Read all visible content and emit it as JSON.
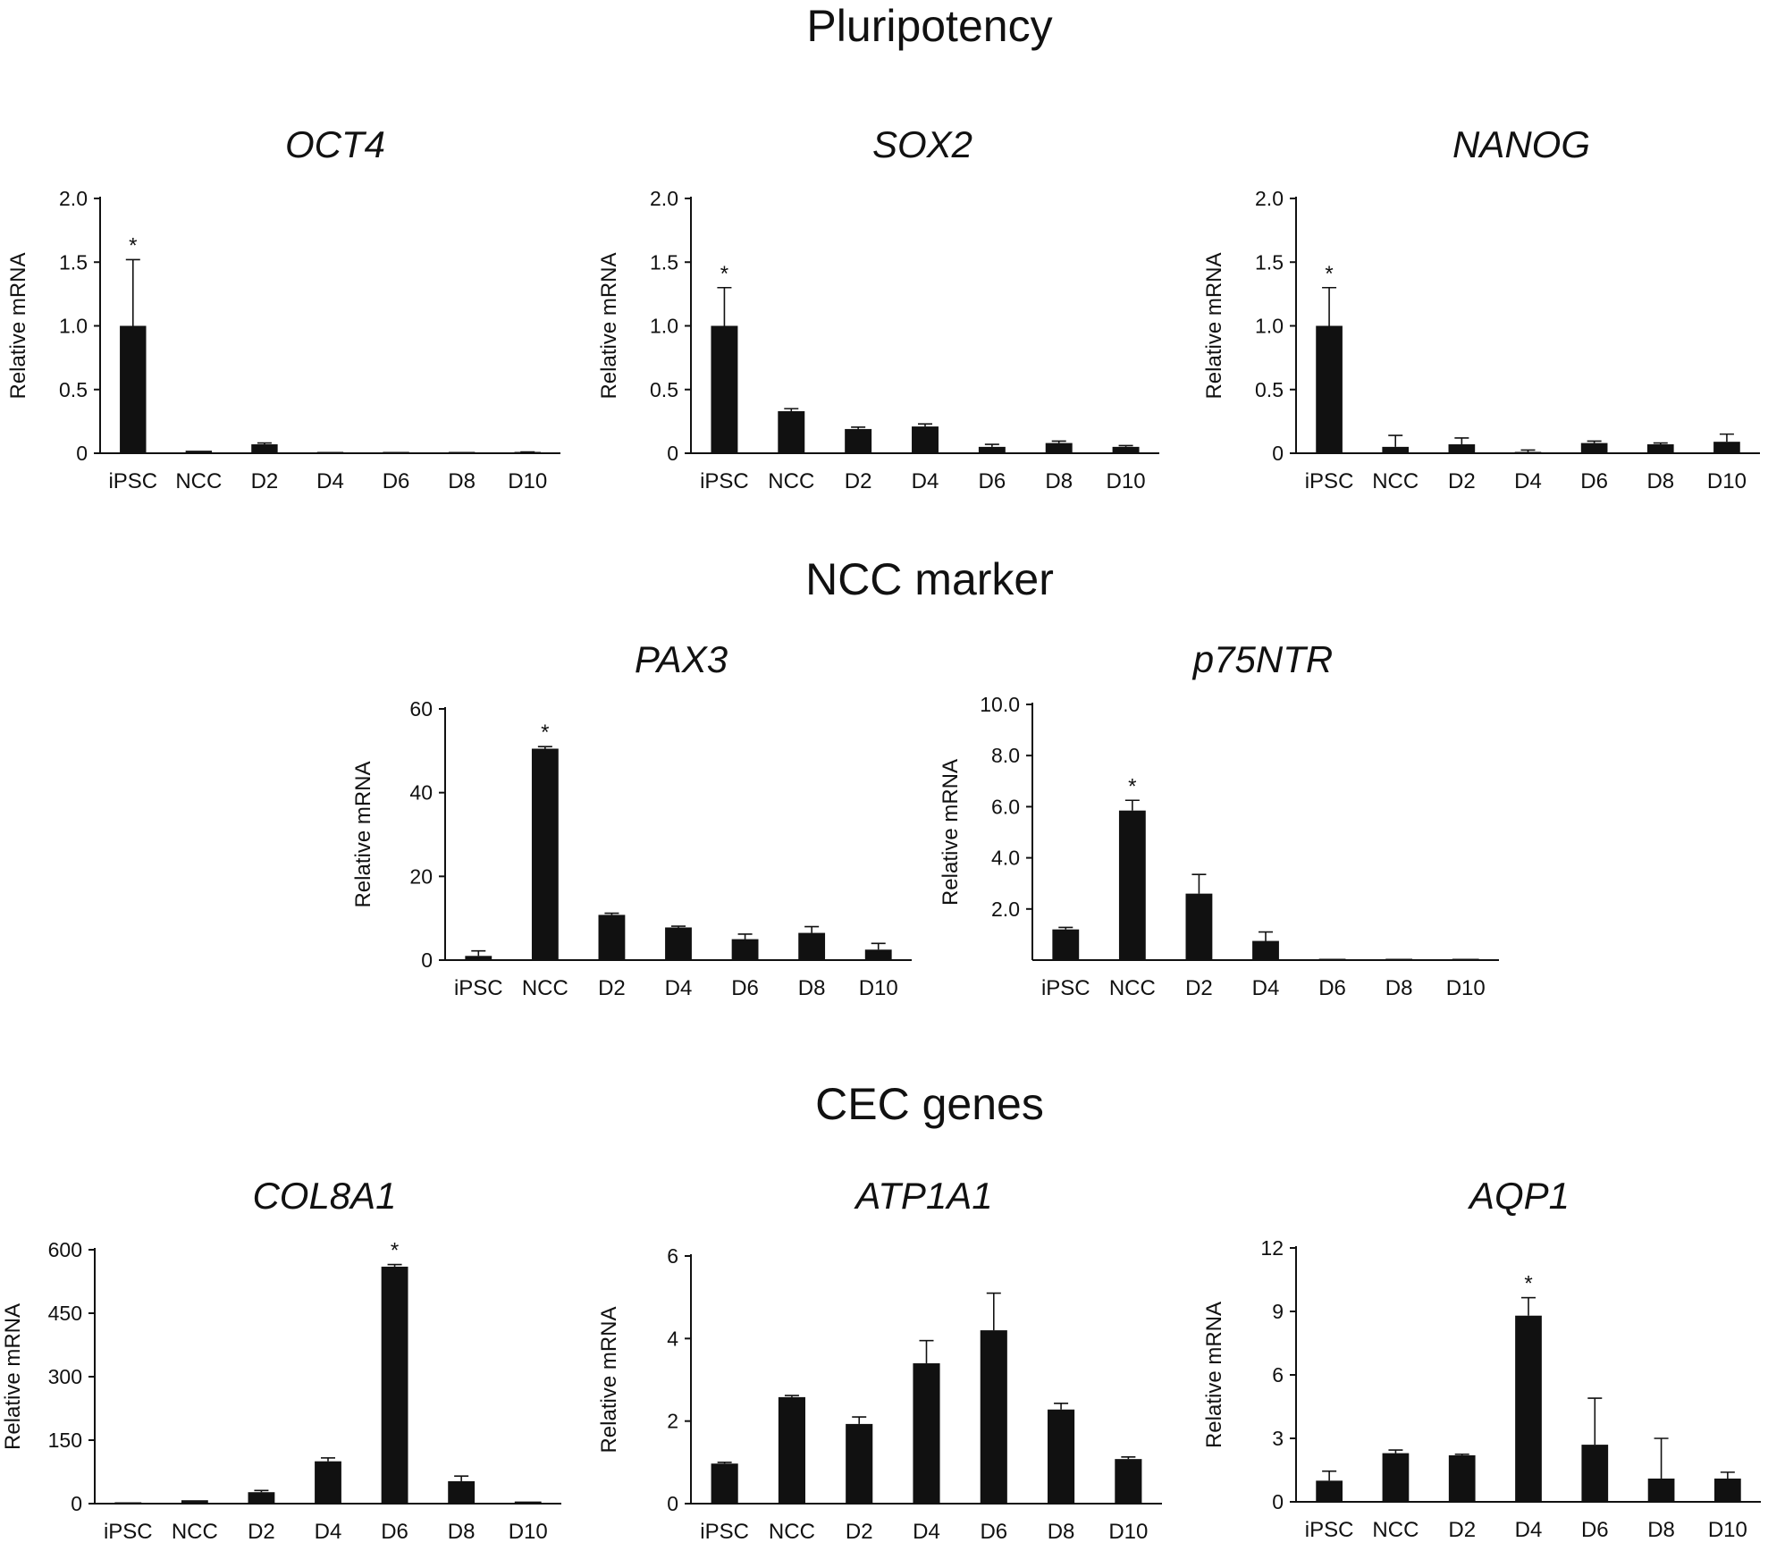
{
  "section_titles": [
    "Pluripotency",
    "NCC marker",
    "CEC genes"
  ],
  "chart_data": [
    {
      "type": "bar",
      "section": "Pluripotency",
      "title": "OCT4",
      "ylabel": "Relative mRNA",
      "categories": [
        "iPSC",
        "NCC",
        "D2",
        "D4",
        "D6",
        "D8",
        "D10"
      ],
      "values": [
        1.0,
        0.02,
        0.07,
        0.01,
        0.0,
        0.0,
        0.0
      ],
      "errors": [
        0.52,
        0.005,
        0.01,
        0.005,
        0.0,
        0.0,
        0.01
      ],
      "yticks": [
        "0",
        "0.5",
        "1.0",
        "1.5",
        "2.0"
      ],
      "ylim": [
        0,
        2.0
      ],
      "significant": [
        "iPSC"
      ]
    },
    {
      "type": "bar",
      "section": "Pluripotency",
      "title": "SOX2",
      "ylabel": "Relative mRNA",
      "categories": [
        "iPSC",
        "NCC",
        "D2",
        "D4",
        "D6",
        "D8",
        "D10"
      ],
      "values": [
        1.0,
        0.33,
        0.19,
        0.21,
        0.05,
        0.08,
        0.05
      ],
      "errors": [
        0.3,
        0.02,
        0.015,
        0.02,
        0.02,
        0.015,
        0.01
      ],
      "yticks": [
        "0",
        "0.5",
        "1.0",
        "1.5",
        "2.0"
      ],
      "ylim": [
        0,
        2.0
      ],
      "significant": [
        "iPSC"
      ]
    },
    {
      "type": "bar",
      "section": "Pluripotency",
      "title": "NANOG",
      "ylabel": "Relative mRNA",
      "categories": [
        "iPSC",
        "NCC",
        "D2",
        "D4",
        "D6",
        "D8",
        "D10"
      ],
      "values": [
        1.0,
        0.05,
        0.07,
        0.01,
        0.08,
        0.07,
        0.09
      ],
      "errors": [
        0.3,
        0.09,
        0.05,
        0.015,
        0.015,
        0.01,
        0.06
      ],
      "yticks": [
        "0",
        "0.5",
        "1.0",
        "1.5",
        "2.0"
      ],
      "ylim": [
        0,
        2.0
      ],
      "significant": [
        "iPSC"
      ]
    },
    {
      "type": "bar",
      "section": "NCC marker",
      "title": "PAX3",
      "ylabel": "Relative mRNA",
      "categories": [
        "iPSC",
        "NCC",
        "D2",
        "D4",
        "D6",
        "D8",
        "D10"
      ],
      "values": [
        1.0,
        50.5,
        10.8,
        7.8,
        5.0,
        6.5,
        2.5
      ],
      "errors": [
        1.2,
        0.5,
        0.4,
        0.3,
        1.2,
        1.5,
        1.5
      ],
      "yticks": [
        "0",
        "20",
        "40",
        "60"
      ],
      "ylim": [
        0,
        60
      ],
      "significant": [
        "NCC"
      ]
    },
    {
      "type": "bar",
      "section": "NCC marker",
      "title": "p75NTR",
      "ylabel": "Relative mRNA",
      "categories": [
        "iPSC",
        "NCC",
        "D2",
        "D4",
        "D6",
        "D8",
        "D10"
      ],
      "values": [
        1.2,
        5.85,
        2.6,
        0.75,
        0.05,
        0.05,
        0.05
      ],
      "errors": [
        0.08,
        0.4,
        0.75,
        0.35,
        0.0,
        0.0,
        0.0
      ],
      "yticks": [
        "2.0",
        "4.0",
        "6.0",
        "8.0",
        "10.0"
      ],
      "ylim": [
        0,
        10.0
      ],
      "significant": [
        "NCC"
      ]
    },
    {
      "type": "bar",
      "section": "CEC genes",
      "title": "COL8A1",
      "ylabel": "Relative mRNA",
      "categories": [
        "iPSC",
        "NCC",
        "D2",
        "D4",
        "D6",
        "D8",
        "D10"
      ],
      "values": [
        1,
        8,
        27,
        100,
        560,
        53,
        5
      ],
      "errors": [
        0.5,
        2,
        4,
        8,
        5,
        12,
        2
      ],
      "yticks": [
        "0",
        "150",
        "300",
        "450",
        "600"
      ],
      "ylim": [
        0,
        600
      ],
      "significant": [
        "D6"
      ]
    },
    {
      "type": "bar",
      "section": "CEC genes",
      "title": "ATP1A1",
      "ylabel": "Relative mRNA",
      "categories": [
        "iPSC",
        "NCC",
        "D2",
        "D4",
        "D6",
        "D8",
        "D10"
      ],
      "values": [
        0.97,
        2.58,
        1.93,
        3.4,
        4.2,
        2.28,
        1.08
      ],
      "errors": [
        0.03,
        0.04,
        0.17,
        0.55,
        0.9,
        0.15,
        0.05
      ],
      "yticks": [
        "0",
        "2",
        "4",
        "6"
      ],
      "ylim": [
        0,
        6
      ],
      "significant": []
    },
    {
      "type": "bar",
      "section": "CEC genes",
      "title": "AQP1",
      "ylabel": "Relative mRNA",
      "categories": [
        "iPSC",
        "NCC",
        "D2",
        "D4",
        "D6",
        "D8",
        "D10"
      ],
      "values": [
        1.0,
        2.3,
        2.2,
        8.8,
        2.7,
        1.1,
        1.1
      ],
      "errors": [
        0.45,
        0.15,
        0.05,
        0.85,
        2.2,
        1.9,
        0.3
      ],
      "yticks": [
        "0",
        "3",
        "6",
        "9",
        "12"
      ],
      "ylim": [
        0,
        12
      ],
      "significant": [
        "D4"
      ]
    }
  ]
}
